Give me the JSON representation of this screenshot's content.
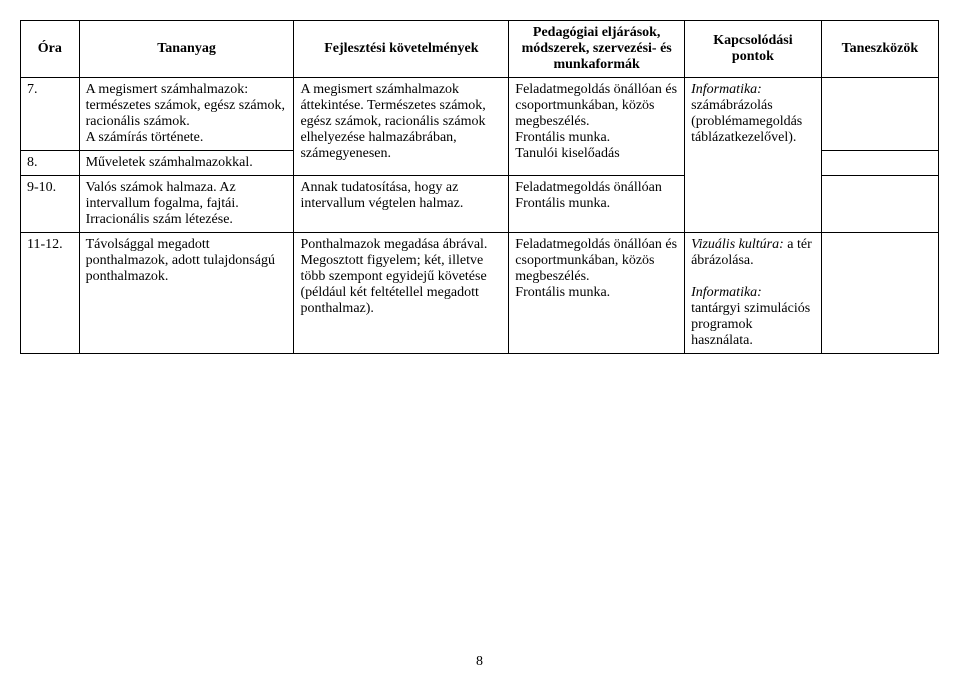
{
  "headers": {
    "ora": "Óra",
    "tananyag": "Tananyag",
    "fejlesztesi": "Fejlesztési követelmények",
    "pedagogiai": "Pedagógiai eljárások, módszerek, szervezési- és munkaformák",
    "kapcsolodasi": "Kapcsolódási pontok",
    "taneszkozok": "Taneszközök"
  },
  "rows": [
    {
      "ora": "7.",
      "tananyag": "A megismert számhalmazok: természetes számok, egész számok, racionális számok.\nA számírás története.",
      "fejlesztesi_rowspan": 2,
      "fejlesztesi": "A megismert számhalmazok áttekintése. Természetes számok, egész számok, racionális számok elhelyezése halmazábrában, számegyenesen.",
      "pedagogiai_rowspan": 2,
      "pedagogiai": "Feladatmegoldás önállóan és csoportmunkában, közös megbeszélés.\nFrontális munka.\nTanulói kiselőadás",
      "kapcs_rowspan": 3,
      "kapcs_prefix_italic": "Informatika:",
      "kapcs_rest": " számábrázolás (problémamegoldás táblázatkezelővel).",
      "taneszkozok": ""
    },
    {
      "ora": "8.",
      "tananyag": "Műveletek számhalmazokkal.",
      "taneszkozok": ""
    },
    {
      "ora": "9-10.",
      "tananyag": "Valós számok halmaza. Az intervallum fogalma, fajtái. Irracionális szám létezése.",
      "fejlesztesi": "Annak tudatosítása, hogy az intervallum végtelen halmaz.",
      "pedagogiai": "Feladatmegoldás önállóan\nFrontális munka.",
      "taneszkozok": ""
    },
    {
      "ora": "11-12.",
      "tananyag": "Távolsággal megadott ponthalmazok, adott tulajdonságú ponthalmazok.",
      "fejlesztesi": "Ponthalmazok megadása ábrával. Megosztott figyelem; két, illetve több szempont egyidejű követése (például két feltétellel megadott ponthalmaz).",
      "pedagogiai": "Feladatmegoldás önállóan és csoportmunkában, közös megbeszélés.\nFrontális munka.",
      "kapcs_prefix_italic1": "Vizuális kultúra:",
      "kapcs_rest1": " a tér ábrázolása.",
      "kapcs_prefix_italic2": "Informatika:",
      "kapcs_rest2": " tantárgyi szimulációs programok használata.",
      "taneszkozok": ""
    }
  ],
  "page_number": "8",
  "style": {
    "font_family": "Times New Roman",
    "font_size_pt": 14,
    "border_color": "#000000",
    "background_color": "#ffffff",
    "text_color": "#000000"
  }
}
